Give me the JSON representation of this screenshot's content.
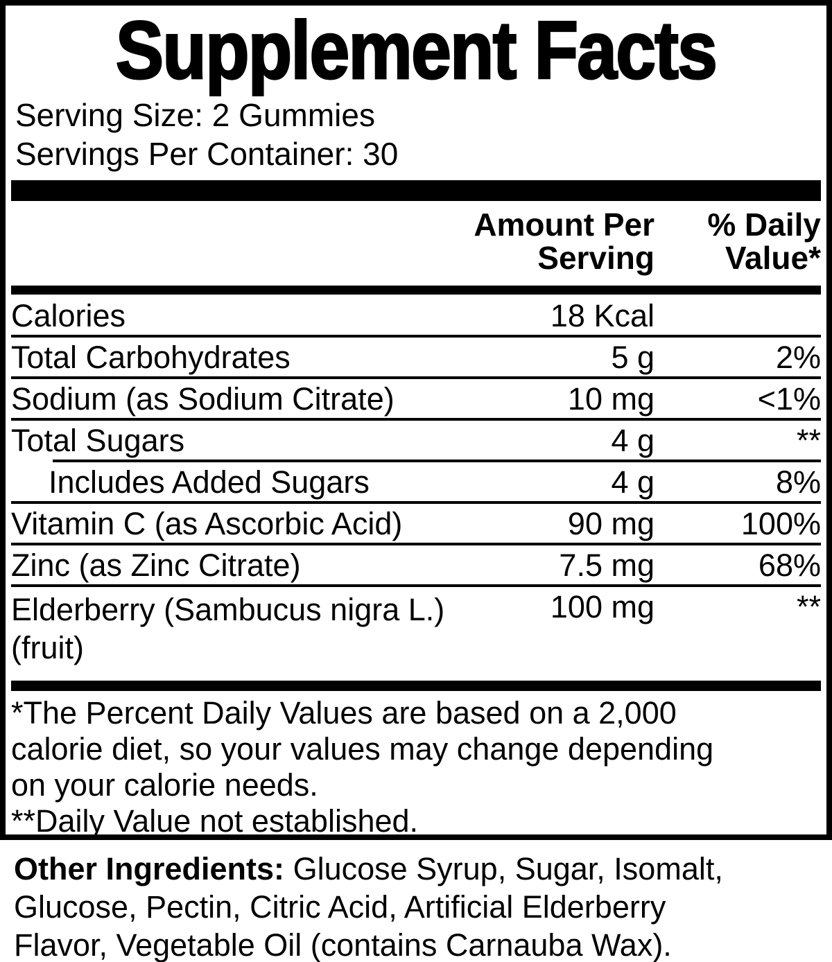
{
  "title": "Supplement Facts",
  "serving": {
    "size_line": "Serving Size: 2 Gummies",
    "per_container_line": "Servings Per Container: 30"
  },
  "header": {
    "amount_line1": "Amount Per",
    "amount_line2": "Serving",
    "dv_line1": "% Daily",
    "dv_line2": "Value*"
  },
  "rows": [
    {
      "name": "Calories",
      "amount": "18 Kcal",
      "dv": ""
    },
    {
      "name": "Total Carbohydrates",
      "amount": "5 g",
      "dv": "2%"
    },
    {
      "name": "Sodium (as Sodium Citrate)",
      "amount": "10 mg",
      "dv": "<1%"
    },
    {
      "name": "Total Sugars",
      "amount": "4 g",
      "dv": "**"
    },
    {
      "name": "Includes Added Sugars",
      "amount": "4 g",
      "dv": "8%"
    },
    {
      "name": "Vitamin C (as Ascorbic Acid)",
      "amount": "90 mg",
      "dv": "100%"
    },
    {
      "name": "Zinc (as Zinc Citrate)",
      "amount": "7.5 mg",
      "dv": "68%"
    },
    {
      "name": "Elderberry (Sambucus nigra L.)",
      "name_line2": "(fruit)",
      "amount": "100 mg",
      "dv": "**"
    }
  ],
  "footnote": {
    "lines": [
      "*The Percent Daily Values are based on a 2,000",
      "calorie diet, so your values may change depending",
      "on your calorie needs.",
      "**Daily Value not established."
    ]
  },
  "other_ingredients": {
    "label": "Other Ingredients:",
    "lines": [
      "Glucose Syrup, Sugar, Isomalt,",
      "Glucose, Pectin, Citric Acid, Artificial Elderberry",
      "Flavor, Vegetable Oil (contains Carnauba Wax)."
    ]
  },
  "colors": {
    "text": "#000000",
    "background": "#ffffff"
  }
}
